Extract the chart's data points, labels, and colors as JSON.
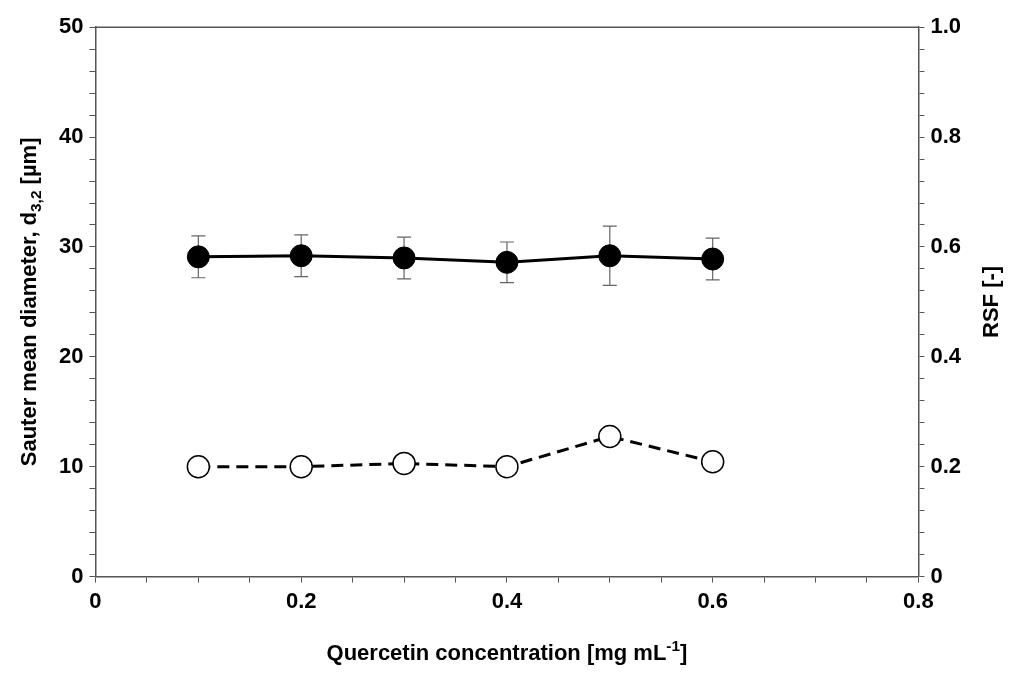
{
  "chart_data": {
    "type": "line",
    "xlabel": "Quercetin concentration [mg mL$^{-1}$]",
    "ylabel": "Sauter mean diameter, d$_{3,2}$ [µm]",
    "y2label": "RSF [-]",
    "x": [
      0.1,
      0.2,
      0.3,
      0.4,
      0.5,
      0.6
    ],
    "series": [
      {
        "color": "#000000",
        "values": [
          29.1,
          29.2,
          29.0,
          28.6,
          29.2,
          28.9
        ],
        "errors": [
          1.9,
          1.9,
          1.9,
          1.85,
          2.7,
          1.9
        ],
        "marker": "circle",
        "line_style": "solid"
      },
      {
        "color": "#000000",
        "axis": "y2",
        "values": [
          0.2,
          0.2,
          0.206,
          0.2,
          0.255,
          0.209
        ],
        "marker": "circle",
        "line_style": "dashed"
      }
    ],
    "xlim": [
      0,
      0.8
    ],
    "xticks": [
      0,
      {
        "value": 0.05,
        "label": null
      },
      {
        "value": 0.1,
        "label": null
      },
      {
        "value": 0.15,
        "label": null
      },
      0.2,
      {
        "value": 0.25,
        "label": null
      },
      {
        "value": 0.3,
        "label": null
      },
      {
        "value": 0.35,
        "label": null
      },
      0.4,
      {
        "value": 0.45,
        "label": null
      },
      {
        "value": 0.5,
        "label": null
      },
      {
        "value": 0.55,
        "label": null
      },
      0.6,
      {
        "value": 0.65,
        "label": null
      },
      {
        "value": 0.7,
        "label": null
      },
      {
        "value": 0.75,
        "label": null
      },
      0.8
    ],
    "ylim": [
      0,
      50
    ],
    "yticks": [
      0,
      {
        "value": 2,
        "label": null
      },
      {
        "value": 4,
        "label": null
      },
      {
        "value": 6,
        "label": null
      },
      {
        "value": 8,
        "label": null
      },
      10,
      {
        "value": 12,
        "label": null
      },
      {
        "value": 14,
        "label": null
      },
      {
        "value": 16,
        "label": null
      },
      {
        "value": 18,
        "label": null
      },
      20,
      {
        "value": 22,
        "label": null
      },
      {
        "value": 24,
        "label": null
      },
      {
        "value": 26,
        "label": null
      },
      {
        "value": 28,
        "label": null
      },
      30,
      {
        "value": 32,
        "label": null
      },
      {
        "value": 34,
        "label": null
      },
      {
        "value": 36,
        "label": null
      },
      {
        "value": 38,
        "label": null
      },
      40,
      {
        "value": 42,
        "label": null
      },
      {
        "value": 44,
        "label": null
      },
      {
        "value": 46,
        "label": null
      },
      {
        "value": 48,
        "label": null
      },
      50
    ],
    "y2lim": [
      0,
      1
    ],
    "y2ticks": [
      0,
      {
        "value": 0.04,
        "label": null
      },
      {
        "value": 0.08,
        "label": null
      },
      {
        "value": 0.12,
        "label": null
      },
      {
        "value": 0.16,
        "label": null
      },
      0.2,
      {
        "value": 0.24,
        "label": null
      },
      {
        "value": 0.28,
        "label": null
      },
      {
        "value": 0.32,
        "label": null
      },
      {
        "value": 0.36,
        "label": null
      },
      0.4,
      {
        "value": 0.44,
        "label": null
      },
      {
        "value": 0.48,
        "label": null
      },
      {
        "value": 0.52,
        "label": null
      },
      {
        "value": 0.56,
        "label": null
      },
      0.6,
      {
        "value": 0.64,
        "label": null
      },
      {
        "value": 0.68,
        "label": null
      },
      {
        "value": 0.72,
        "label": null
      },
      {
        "value": 0.76,
        "label": null
      },
      0.8,
      {
        "value": 0.84,
        "label": null
      },
      {
        "value": 0.88,
        "label": null
      },
      {
        "value": 0.92,
        "label": null
      },
      {
        "value": 0.96,
        "label": null
      },
      {
        "value": 1,
        "label": "1.0"
      }
    ],
    "grid": false,
    "legend": false
  }
}
